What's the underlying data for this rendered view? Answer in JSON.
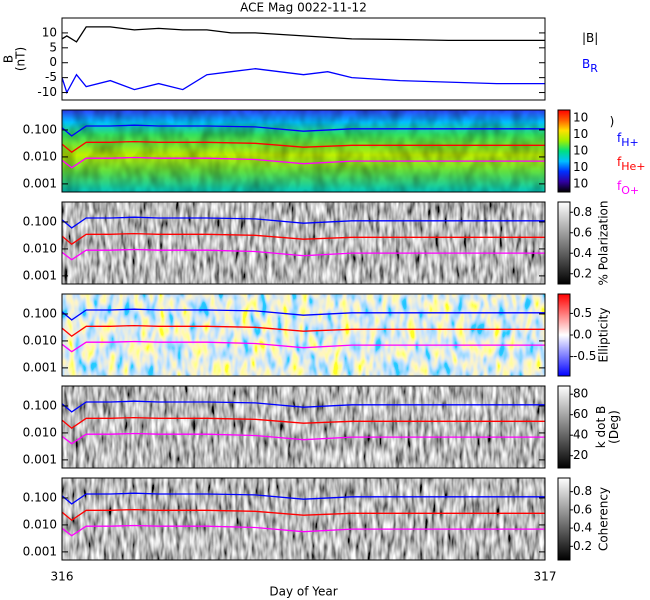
{
  "chart_data": [
    {
      "type": "line",
      "title": "ACE Mag 0022-11-12",
      "y_label": [
        "B",
        "(nT)"
      ],
      "xlim": [
        316,
        317
      ],
      "ylim": [
        -12.5,
        15
      ],
      "yticks": [
        -10,
        -5,
        0,
        5,
        10
      ],
      "legend": true,
      "x": [
        316,
        316.01,
        316.03,
        316.05,
        316.1,
        316.15,
        316.2,
        316.25,
        316.3,
        316.35,
        316.4,
        316.45,
        316.5,
        316.55,
        316.6,
        316.7,
        316.8,
        316.9,
        317
      ],
      "series": [
        {
          "name": "|B|",
          "color": "#000000",
          "values": [
            8,
            9,
            7,
            12,
            12,
            11,
            11.5,
            11,
            11,
            10,
            10,
            9.5,
            9,
            8.5,
            8,
            7.8,
            7.5,
            7.5,
            7.5
          ]
        },
        {
          "name": "B",
          "subscript": "R",
          "color": "#0000ff",
          "values": [
            -5,
            -10,
            -4,
            -8,
            -6,
            -9,
            -7,
            -9,
            -4,
            -3,
            -2,
            -3,
            -4,
            -3,
            -5,
            -6,
            -6.5,
            -7,
            -7
          ]
        }
      ]
    },
    {
      "type": "line",
      "log": true,
      "colormap": "rainbow",
      "xlim": [
        316,
        317
      ],
      "ylim": [
        0.0005,
        0.55
      ],
      "legend": true,
      "yticks": [
        {
          "value": 0.1,
          "label": "0.100"
        },
        {
          "value": 0.01,
          "label": "0.010"
        },
        {
          "value": 0.001,
          "label": "0.001"
        }
      ],
      "x": [
        316,
        316.02,
        316.05,
        316.1,
        316.15,
        316.2,
        316.3,
        316.4,
        316.5,
        316.6,
        316.7,
        316.85,
        317
      ],
      "series": [
        {
          "name": "f",
          "subscript": "H+",
          "color": "#0000ff",
          "values": [
            0.12,
            0.06,
            0.14,
            0.14,
            0.15,
            0.14,
            0.14,
            0.13,
            0.09,
            0.11,
            0.11,
            0.11,
            0.11
          ]
        },
        {
          "name": "f",
          "subscript": "He+",
          "color": "#ff0000",
          "values": [
            0.03,
            0.015,
            0.035,
            0.035,
            0.037,
            0.035,
            0.035,
            0.032,
            0.023,
            0.027,
            0.027,
            0.027,
            0.027
          ]
        },
        {
          "name": "f",
          "subscript": "O+",
          "color": "#ff00ff",
          "values": [
            0.0075,
            0.004,
            0.009,
            0.009,
            0.0095,
            0.009,
            0.009,
            0.008,
            0.0056,
            0.007,
            0.007,
            0.007,
            0.007
          ]
        }
      ],
      "colorbar": {
        "label": [
          ")"
        ],
        "colors": [
          "#000000",
          "#3000a0",
          "#0030ff",
          "#00c0ff",
          "#00e080",
          "#a0f000",
          "#ffe000",
          "#ff6000",
          "#ff0000"
        ],
        "tick_labels": [
          "10",
          "10",
          "10",
          "10",
          "10"
        ]
      }
    },
    {
      "type": "line",
      "log": true,
      "colormap": "gray",
      "xlim": [
        316,
        317
      ],
      "ylim": [
        0.0005,
        0.55
      ],
      "yticks": [
        {
          "value": 0.1,
          "label": "0.100"
        },
        {
          "value": 0.01,
          "label": "0.010"
        },
        {
          "value": 0.001,
          "label": "0.001"
        }
      ],
      "x": [
        316,
        316.02,
        316.05,
        316.1,
        316.15,
        316.2,
        316.3,
        316.4,
        316.5,
        316.6,
        316.7,
        316.85,
        317
      ],
      "series": [
        {
          "color": "#0000ff",
          "values": [
            0.12,
            0.06,
            0.14,
            0.14,
            0.15,
            0.14,
            0.14,
            0.13,
            0.09,
            0.11,
            0.11,
            0.11,
            0.11
          ]
        },
        {
          "color": "#ff0000",
          "values": [
            0.03,
            0.015,
            0.035,
            0.035,
            0.037,
            0.035,
            0.035,
            0.032,
            0.023,
            0.027,
            0.027,
            0.027,
            0.027
          ]
        },
        {
          "color": "#ff00ff",
          "values": [
            0.0075,
            0.004,
            0.009,
            0.009,
            0.0095,
            0.009,
            0.009,
            0.008,
            0.0056,
            0.007,
            0.007,
            0.007,
            0.007
          ]
        }
      ],
      "colorbar": {
        "label": [
          "% Polarization"
        ],
        "colors": [
          "#000000",
          "#ffffff"
        ],
        "lim": [
          0.1,
          0.9
        ],
        "ticks": [
          0.2,
          0.4,
          0.6,
          0.8
        ]
      }
    },
    {
      "type": "line",
      "log": true,
      "colormap": "diverging",
      "xlim": [
        316,
        317
      ],
      "ylim": [
        0.0005,
        0.55
      ],
      "yticks": [
        {
          "value": 0.1,
          "label": "0.100"
        },
        {
          "value": 0.01,
          "label": "0.010"
        },
        {
          "value": 0.001,
          "label": "0.001"
        }
      ],
      "x": [
        316,
        316.02,
        316.05,
        316.1,
        316.15,
        316.2,
        316.3,
        316.4,
        316.5,
        316.6,
        316.7,
        316.85,
        317
      ],
      "series": [
        {
          "color": "#0000ff",
          "values": [
            0.12,
            0.06,
            0.14,
            0.14,
            0.15,
            0.14,
            0.14,
            0.13,
            0.09,
            0.11,
            0.11,
            0.11,
            0.11
          ]
        },
        {
          "color": "#ff0000",
          "values": [
            0.03,
            0.015,
            0.035,
            0.035,
            0.037,
            0.035,
            0.035,
            0.032,
            0.023,
            0.027,
            0.027,
            0.027,
            0.027
          ]
        },
        {
          "color": "#ff00ff",
          "values": [
            0.0075,
            0.004,
            0.009,
            0.009,
            0.0095,
            0.009,
            0.009,
            0.008,
            0.0056,
            0.007,
            0.007,
            0.007,
            0.007
          ]
        }
      ],
      "colorbar": {
        "label": [
          "Ellipticity"
        ],
        "colors": [
          "#0000ff",
          "#ffffff",
          "#ff0000"
        ],
        "lim": [
          -0.95,
          0.95
        ],
        "ticks": [
          -0.5,
          {
            "value": 0,
            "label": "0.0"
          },
          0.5
        ]
      }
    },
    {
      "type": "line",
      "log": true,
      "colormap": "gray",
      "xlim": [
        316,
        317
      ],
      "ylim": [
        0.0005,
        0.55
      ],
      "yticks": [
        {
          "value": 0.1,
          "label": "0.100"
        },
        {
          "value": 0.01,
          "label": "0.010"
        },
        {
          "value": 0.001,
          "label": "0.001"
        }
      ],
      "x": [
        316,
        316.02,
        316.05,
        316.1,
        316.15,
        316.2,
        316.3,
        316.4,
        316.5,
        316.6,
        316.7,
        316.85,
        317
      ],
      "series": [
        {
          "color": "#0000ff",
          "values": [
            0.12,
            0.06,
            0.14,
            0.14,
            0.15,
            0.14,
            0.14,
            0.13,
            0.09,
            0.11,
            0.11,
            0.11,
            0.11
          ]
        },
        {
          "color": "#ff0000",
          "values": [
            0.03,
            0.015,
            0.035,
            0.035,
            0.037,
            0.035,
            0.035,
            0.032,
            0.023,
            0.027,
            0.027,
            0.027,
            0.027
          ]
        },
        {
          "color": "#ff00ff",
          "values": [
            0.0075,
            0.004,
            0.009,
            0.009,
            0.0095,
            0.009,
            0.009,
            0.008,
            0.0056,
            0.007,
            0.007,
            0.007,
            0.007
          ]
        }
      ],
      "colorbar": {
        "label": [
          "k dot B",
          "(Deg)"
        ],
        "colors": [
          "#000000",
          "#ffffff"
        ],
        "lim": [
          8,
          88
        ],
        "ticks": [
          20,
          40,
          60,
          80
        ]
      }
    },
    {
      "type": "line",
      "log": true,
      "colormap": "gray",
      "xlim": [
        316,
        317
      ],
      "ylim": [
        0.0005,
        0.55
      ],
      "yticks": [
        {
          "value": 0.1,
          "label": "0.100"
        },
        {
          "value": 0.01,
          "label": "0.010"
        },
        {
          "value": 0.001,
          "label": "0.001"
        }
      ],
      "x": [
        316,
        316.02,
        316.05,
        316.1,
        316.15,
        316.2,
        316.3,
        316.4,
        316.5,
        316.6,
        316.7,
        316.85,
        317
      ],
      "series": [
        {
          "color": "#0000ff",
          "values": [
            0.12,
            0.06,
            0.14,
            0.14,
            0.15,
            0.14,
            0.14,
            0.13,
            0.09,
            0.11,
            0.11,
            0.11,
            0.11
          ]
        },
        {
          "color": "#ff0000",
          "values": [
            0.03,
            0.015,
            0.035,
            0.035,
            0.037,
            0.035,
            0.035,
            0.032,
            0.023,
            0.027,
            0.027,
            0.027,
            0.027
          ]
        },
        {
          "color": "#ff00ff",
          "values": [
            0.0075,
            0.004,
            0.009,
            0.009,
            0.0095,
            0.009,
            0.009,
            0.008,
            0.0056,
            0.007,
            0.007,
            0.007,
            0.007
          ]
        }
      ],
      "colorbar": {
        "label": [
          "Coherency"
        ],
        "colors": [
          "#000000",
          "#ffffff"
        ],
        "lim": [
          0.05,
          0.95
        ],
        "ticks": [
          0.2,
          0.4,
          0.6,
          0.8
        ]
      },
      "xticks": [
        316,
        317
      ],
      "x_label": "Day of Year"
    }
  ]
}
